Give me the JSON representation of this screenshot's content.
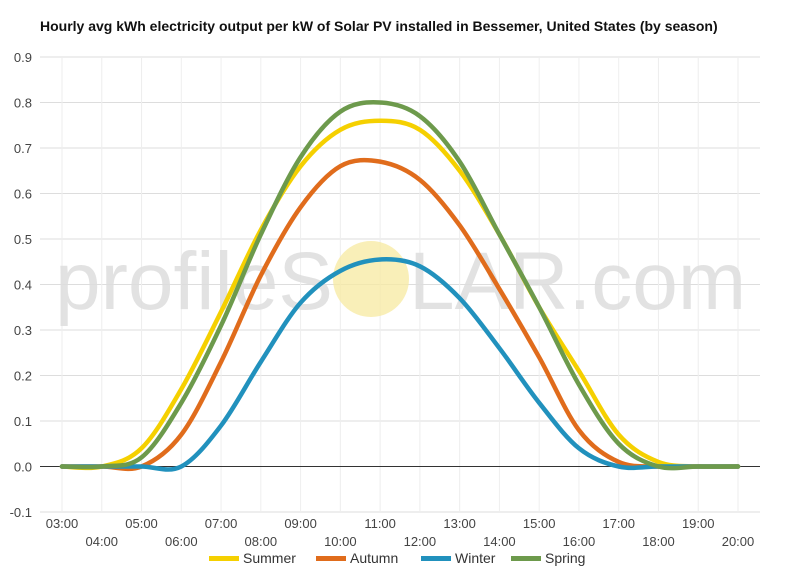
{
  "title": "Hourly avg kWh electricity output per kW of Solar PV installed in Bessemer, United States (by season)",
  "watermark": {
    "text_left": "profileS",
    "text_right": "LAR.com",
    "sun_color": "#f7e9a0",
    "text_color": "#dedede"
  },
  "colors": {
    "Summer": "#f5d000",
    "Autumn": "#e06c1c",
    "Winter": "#2191bd",
    "Spring": "#6d9a4c"
  },
  "chart_data": {
    "type": "line",
    "title": "Hourly avg kWh electricity output per kW of Solar PV installed in Bessemer, United States (by season)",
    "xlabel": "",
    "ylabel": "",
    "x": [
      "03:00",
      "04:00",
      "05:00",
      "06:00",
      "07:00",
      "08:00",
      "09:00",
      "10:00",
      "11:00",
      "12:00",
      "13:00",
      "14:00",
      "15:00",
      "16:00",
      "17:00",
      "18:00",
      "19:00",
      "20:00"
    ],
    "x_tick_labels_upper": [
      "03:00",
      "05:00",
      "07:00",
      "09:00",
      "11:00",
      "13:00",
      "15:00",
      "17:00",
      "19:00"
    ],
    "x_tick_labels_lower": [
      "04:00",
      "06:00",
      "08:00",
      "10:00",
      "12:00",
      "14:00",
      "16:00",
      "18:00",
      "20:00"
    ],
    "ylim": [
      -0.1,
      0.9
    ],
    "y_ticks": [
      "-0.1",
      "0.0",
      "0.1",
      "0.2",
      "0.3",
      "0.4",
      "0.5",
      "0.6",
      "0.7",
      "0.8",
      "0.9"
    ],
    "grid": true,
    "legend_position": "bottom",
    "series": [
      {
        "name": "Summer",
        "values": [
          0.0,
          0.0,
          0.04,
          0.17,
          0.34,
          0.52,
          0.66,
          0.74,
          0.76,
          0.74,
          0.65,
          0.51,
          0.35,
          0.21,
          0.07,
          0.01,
          0.0,
          0.0
        ]
      },
      {
        "name": "Autumn",
        "values": [
          0.0,
          0.0,
          0.0,
          0.07,
          0.23,
          0.42,
          0.57,
          0.66,
          0.67,
          0.63,
          0.53,
          0.39,
          0.24,
          0.08,
          0.01,
          0.0,
          0.0,
          0.0
        ]
      },
      {
        "name": "Winter",
        "values": [
          0.0,
          0.0,
          0.0,
          0.0,
          0.09,
          0.23,
          0.36,
          0.43,
          0.455,
          0.44,
          0.37,
          0.26,
          0.14,
          0.04,
          0.0,
          0.0,
          0.0,
          0.0
        ]
      },
      {
        "name": "Spring",
        "values": [
          0.0,
          0.0,
          0.02,
          0.14,
          0.31,
          0.51,
          0.68,
          0.78,
          0.8,
          0.77,
          0.67,
          0.51,
          0.35,
          0.18,
          0.05,
          0.0,
          0.0,
          0.0
        ]
      }
    ]
  }
}
